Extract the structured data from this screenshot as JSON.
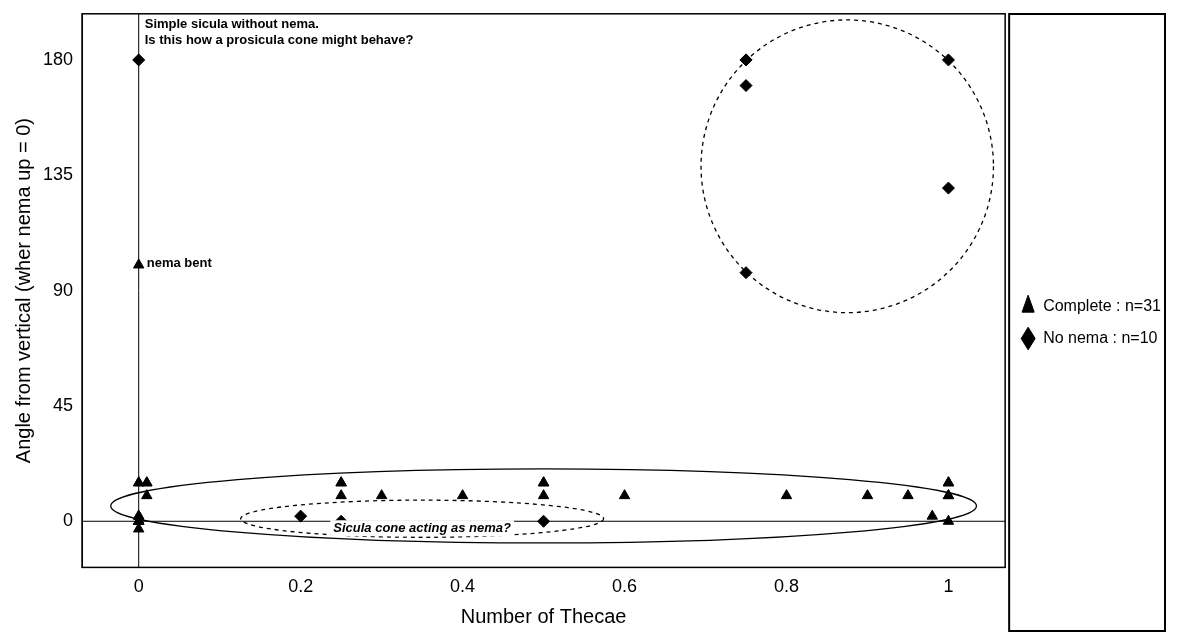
{
  "chart_data": {
    "type": "scatter",
    "x_label": "Number of Thecae",
    "y_label": "Angle from vertical (wher nema up = 0)",
    "xlim": [
      -0.07,
      1.07
    ],
    "xticks": [
      0,
      0.2,
      0.4,
      0.6,
      0.8,
      1
    ],
    "ylim": [
      -18,
      198
    ],
    "yticks": [
      0,
      45,
      90,
      135,
      180
    ],
    "grid": false,
    "legend": "right",
    "annotations": [
      "Simple sicula without nema.",
      "Is this how a prosicula cone might behave?",
      "nema bent",
      "Sicula cone acting as nema?"
    ],
    "series": [
      {
        "name": "Complete : n=31",
        "color": "#000000",
        "marker": "triangle",
        "x": [
          0,
          0,
          0,
          0,
          0,
          0,
          0,
          0,
          0,
          0,
          0.01,
          0.01,
          0.01,
          0.25,
          0.25,
          0.25,
          0.3,
          0.4,
          0.5,
          0.5,
          0.5,
          0.6,
          0.8,
          0.9,
          0.95,
          0.98,
          1,
          1,
          1,
          1,
          1
        ],
        "values": [
          15,
          15,
          2,
          2,
          0,
          0,
          0,
          0,
          -3,
          100,
          15,
          15,
          10,
          15,
          15,
          10,
          10,
          10,
          15,
          15,
          10,
          10,
          10,
          10,
          10,
          2,
          15,
          15,
          10,
          10,
          0
        ]
      },
      {
        "name": "No nema : n=10",
        "color": "#000000",
        "marker": "diamond",
        "x": [
          0,
          0.75,
          0.75,
          0.75,
          0.75,
          1,
          1,
          0.2,
          0.25,
          0.5
        ],
        "values": [
          180,
          180,
          180,
          170,
          97,
          180,
          130,
          2,
          0,
          0
        ]
      }
    ]
  }
}
